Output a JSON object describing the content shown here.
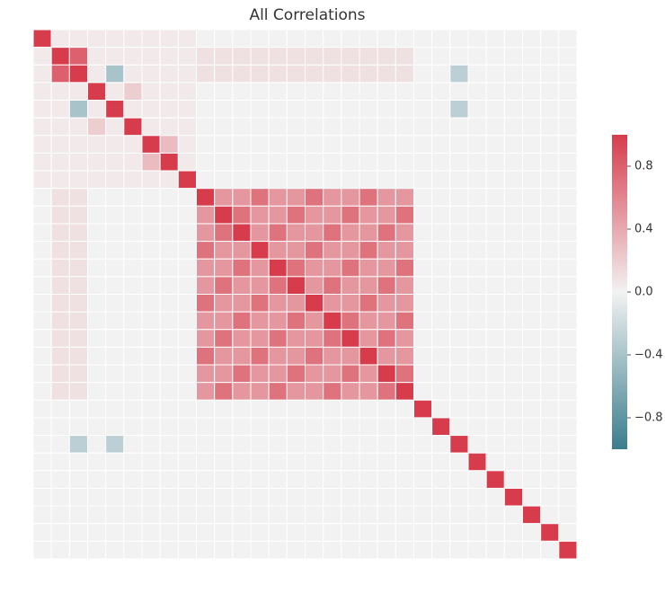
{
  "chart_data": {
    "type": "heatmap",
    "title": "All Correlations",
    "categories": [
      null,
      null,
      null,
      null,
      null,
      null,
      null,
      null,
      null,
      null,
      null,
      null,
      null,
      null,
      null,
      null,
      null,
      null,
      null,
      null,
      null,
      null,
      null,
      null,
      null,
      null,
      null,
      null,
      null,
      null
    ],
    "matrix": [
      [
        1,
        0.05,
        0.05,
        0.05,
        0.05,
        0.05,
        0.05,
        0.05,
        0.05,
        0,
        0,
        0,
        0,
        0,
        0,
        0,
        0,
        0,
        0,
        0,
        0,
        0,
        0,
        0,
        0,
        0,
        0,
        0,
        0,
        0
      ],
      [
        0.05,
        1,
        0.8,
        0.05,
        0.05,
        0.05,
        0.05,
        0.05,
        0.05,
        0.1,
        0.1,
        0.1,
        0.1,
        0.1,
        0.1,
        0.1,
        0.1,
        0.1,
        0.1,
        0.1,
        0.1,
        0,
        0,
        0,
        0,
        0,
        0,
        0,
        0,
        0
      ],
      [
        0.05,
        0.8,
        1,
        0.05,
        -0.4,
        0.05,
        0.05,
        0.05,
        0.05,
        0.1,
        0.1,
        0.1,
        0.1,
        0.1,
        0.1,
        0.1,
        0.1,
        0.1,
        0.1,
        0.1,
        0.1,
        0,
        0,
        -0.3,
        0,
        0,
        0,
        0,
        0,
        0
      ],
      [
        0.05,
        0.05,
        0.05,
        1,
        0.05,
        0.2,
        0.05,
        0.05,
        0.05,
        0,
        0,
        0,
        0,
        0,
        0,
        0,
        0,
        0,
        0,
        0,
        0,
        0,
        0,
        0,
        0,
        0,
        0,
        0,
        0,
        0
      ],
      [
        0.05,
        0.05,
        -0.4,
        0.05,
        1,
        0.05,
        0.05,
        0.05,
        0.05,
        0,
        0,
        0,
        0,
        0,
        0,
        0,
        0,
        0,
        0,
        0,
        0,
        0,
        0,
        -0.3,
        0,
        0,
        0,
        0,
        0,
        0
      ],
      [
        0.05,
        0.05,
        0.05,
        0.2,
        0.05,
        1,
        0.05,
        0.05,
        0.05,
        0,
        0,
        0,
        0,
        0,
        0,
        0,
        0,
        0,
        0,
        0,
        0,
        0,
        0,
        0,
        0,
        0,
        0,
        0,
        0,
        0
      ],
      [
        0.05,
        0.05,
        0.05,
        0.05,
        0.05,
        0.05,
        1,
        0.3,
        0.05,
        0,
        0,
        0,
        0,
        0,
        0,
        0,
        0,
        0,
        0,
        0,
        0,
        0,
        0,
        0,
        0,
        0,
        0,
        0,
        0,
        0
      ],
      [
        0.05,
        0.05,
        0.05,
        0.05,
        0.05,
        0.05,
        0.3,
        1,
        0.05,
        0,
        0,
        0,
        0,
        0,
        0,
        0,
        0,
        0,
        0,
        0,
        0,
        0,
        0,
        0,
        0,
        0,
        0,
        0,
        0,
        0
      ],
      [
        0.05,
        0.05,
        0.05,
        0.05,
        0.05,
        0.05,
        0.05,
        0.05,
        1,
        0,
        0,
        0,
        0,
        0,
        0,
        0,
        0,
        0,
        0,
        0,
        0,
        0,
        0,
        0,
        0,
        0,
        0,
        0,
        0,
        0
      ],
      [
        0,
        0.1,
        0.1,
        0,
        0,
        0,
        0,
        0,
        0,
        1,
        0.5,
        0.5,
        0.7,
        0.5,
        0.5,
        0.7,
        0.5,
        0.5,
        0.7,
        0.5,
        0.5,
        0,
        0,
        0,
        0,
        0,
        0,
        0,
        0,
        0
      ],
      [
        0,
        0.1,
        0.1,
        0,
        0,
        0,
        0,
        0,
        0,
        0.5,
        1,
        0.7,
        0.5,
        0.5,
        0.7,
        0.5,
        0.5,
        0.7,
        0.5,
        0.5,
        0.7,
        0,
        0,
        0,
        0,
        0,
        0,
        0,
        0,
        0
      ],
      [
        0,
        0.1,
        0.1,
        0,
        0,
        0,
        0,
        0,
        0,
        0.5,
        0.7,
        1,
        0.5,
        0.7,
        0.5,
        0.5,
        0.7,
        0.5,
        0.5,
        0.7,
        0.5,
        0,
        0,
        0,
        0,
        0,
        0,
        0,
        0,
        0
      ],
      [
        0,
        0.1,
        0.1,
        0,
        0,
        0,
        0,
        0,
        0,
        0.7,
        0.5,
        0.5,
        1,
        0.5,
        0.5,
        0.7,
        0.5,
        0.5,
        0.7,
        0.5,
        0.5,
        0,
        0,
        0,
        0,
        0,
        0,
        0,
        0,
        0
      ],
      [
        0,
        0.1,
        0.1,
        0,
        0,
        0,
        0,
        0,
        0,
        0.5,
        0.5,
        0.7,
        0.5,
        1,
        0.7,
        0.5,
        0.5,
        0.7,
        0.5,
        0.5,
        0.7,
        0,
        0,
        0,
        0,
        0,
        0,
        0,
        0,
        0
      ],
      [
        0,
        0.1,
        0.1,
        0,
        0,
        0,
        0,
        0,
        0,
        0.5,
        0.7,
        0.5,
        0.5,
        0.7,
        1,
        0.5,
        0.7,
        0.5,
        0.5,
        0.7,
        0.5,
        0,
        0,
        0,
        0,
        0,
        0,
        0,
        0,
        0
      ],
      [
        0,
        0.1,
        0.1,
        0,
        0,
        0,
        0,
        0,
        0,
        0.7,
        0.5,
        0.5,
        0.7,
        0.5,
        0.5,
        1,
        0.5,
        0.5,
        0.7,
        0.5,
        0.5,
        0,
        0,
        0,
        0,
        0,
        0,
        0,
        0,
        0
      ],
      [
        0,
        0.1,
        0.1,
        0,
        0,
        0,
        0,
        0,
        0,
        0.5,
        0.5,
        0.7,
        0.5,
        0.5,
        0.7,
        0.5,
        1,
        0.7,
        0.5,
        0.5,
        0.7,
        0,
        0,
        0,
        0,
        0,
        0,
        0,
        0,
        0
      ],
      [
        0,
        0.1,
        0.1,
        0,
        0,
        0,
        0,
        0,
        0,
        0.5,
        0.7,
        0.5,
        0.5,
        0.7,
        0.5,
        0.5,
        0.7,
        1,
        0.5,
        0.7,
        0.5,
        0,
        0,
        0,
        0,
        0,
        0,
        0,
        0,
        0
      ],
      [
        0,
        0.1,
        0.1,
        0,
        0,
        0,
        0,
        0,
        0,
        0.7,
        0.5,
        0.5,
        0.7,
        0.5,
        0.5,
        0.7,
        0.5,
        0.5,
        1,
        0.5,
        0.5,
        0,
        0,
        0,
        0,
        0,
        0,
        0,
        0,
        0
      ],
      [
        0,
        0.1,
        0.1,
        0,
        0,
        0,
        0,
        0,
        0,
        0.5,
        0.5,
        0.7,
        0.5,
        0.5,
        0.7,
        0.5,
        0.5,
        0.7,
        0.5,
        1,
        0.7,
        0,
        0,
        0,
        0,
        0,
        0,
        0,
        0,
        0
      ],
      [
        0,
        0.1,
        0.1,
        0,
        0,
        0,
        0,
        0,
        0,
        0.5,
        0.7,
        0.5,
        0.5,
        0.7,
        0.5,
        0.5,
        0.7,
        0.5,
        0.5,
        0.7,
        1,
        0,
        0,
        0,
        0,
        0,
        0,
        0,
        0,
        0
      ],
      [
        0,
        0,
        0,
        0,
        0,
        0,
        0,
        0,
        0,
        0,
        0,
        0,
        0,
        0,
        0,
        0,
        0,
        0,
        0,
        0,
        0,
        1,
        0,
        0,
        0,
        0,
        0,
        0,
        0,
        0
      ],
      [
        0,
        0,
        0,
        0,
        0,
        0,
        0,
        0,
        0,
        0,
        0,
        0,
        0,
        0,
        0,
        0,
        0,
        0,
        0,
        0,
        0,
        0,
        1,
        0,
        0,
        0,
        0,
        0,
        0,
        0
      ],
      [
        0,
        0,
        -0.3,
        0,
        -0.3,
        0,
        0,
        0,
        0,
        0,
        0,
        0,
        0,
        0,
        0,
        0,
        0,
        0,
        0,
        0,
        0,
        0,
        0,
        1,
        0,
        0,
        0,
        0,
        0,
        0
      ],
      [
        0,
        0,
        0,
        0,
        0,
        0,
        0,
        0,
        0,
        0,
        0,
        0,
        0,
        0,
        0,
        0,
        0,
        0,
        0,
        0,
        0,
        0,
        0,
        0,
        1,
        0,
        0,
        0,
        0,
        0
      ],
      [
        0,
        0,
        0,
        0,
        0,
        0,
        0,
        0,
        0,
        0,
        0,
        0,
        0,
        0,
        0,
        0,
        0,
        0,
        0,
        0,
        0,
        0,
        0,
        0,
        0,
        1,
        0,
        0,
        0,
        0
      ],
      [
        0,
        0,
        0,
        0,
        0,
        0,
        0,
        0,
        0,
        0,
        0,
        0,
        0,
        0,
        0,
        0,
        0,
        0,
        0,
        0,
        0,
        0,
        0,
        0,
        0,
        0,
        1,
        0,
        0,
        0
      ],
      [
        0,
        0,
        0,
        0,
        0,
        0,
        0,
        0,
        0,
        0,
        0,
        0,
        0,
        0,
        0,
        0,
        0,
        0,
        0,
        0,
        0,
        0,
        0,
        0,
        0,
        0,
        0,
        1,
        0,
        0
      ],
      [
        0,
        0,
        0,
        0,
        0,
        0,
        0,
        0,
        0,
        0,
        0,
        0,
        0,
        0,
        0,
        0,
        0,
        0,
        0,
        0,
        0,
        0,
        0,
        0,
        0,
        0,
        0,
        0,
        1,
        0
      ],
      [
        0,
        0,
        0,
        0,
        0,
        0,
        0,
        0,
        0,
        0,
        0,
        0,
        0,
        0,
        0,
        0,
        0,
        0,
        0,
        0,
        0,
        0,
        0,
        0,
        0,
        0,
        0,
        0,
        0,
        1
      ]
    ],
    "zlim": [
      -1,
      1
    ],
    "zticks": [
      {
        "value": -0.8,
        "label": "−0.8"
      },
      {
        "value": -0.4,
        "label": "−0.4"
      },
      {
        "value": 0,
        "label": "0.0"
      },
      0.4,
      0.8
    ],
    "colors": {
      "negative": "#3b7d8d",
      "center": "#f2f2f2",
      "positive": "#d63c4c"
    }
  }
}
